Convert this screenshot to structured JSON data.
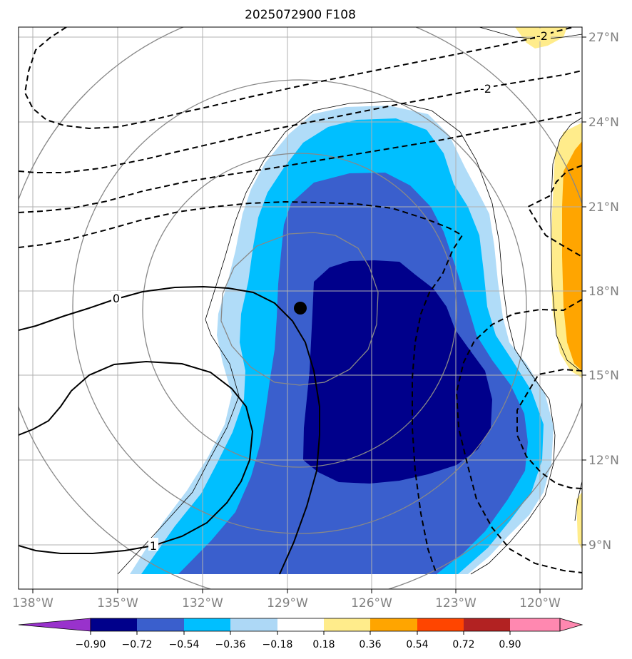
{
  "title": "2025072900 F108",
  "map": {
    "lon_range": [
      -138.8,
      -119.0
    ],
    "lat_range": [
      7.3,
      27.3
    ],
    "lon_ticks": [
      {
        "value": -138,
        "label": "138°W"
      },
      {
        "value": -135,
        "label": "135°W"
      },
      {
        "value": -132,
        "label": "132°W"
      },
      {
        "value": -129,
        "label": "129°W"
      },
      {
        "value": -126,
        "label": "126°W"
      },
      {
        "value": -123,
        "label": "123°W"
      },
      {
        "value": -120,
        "label": "120°W"
      }
    ],
    "lat_ticks": [
      {
        "value": 9,
        "label": "9°N"
      },
      {
        "value": 12,
        "label": "12°N"
      },
      {
        "value": 15,
        "label": "15°N"
      },
      {
        "value": 18,
        "label": "18°N"
      },
      {
        "value": 21,
        "label": "21°N"
      },
      {
        "value": 24,
        "label": "24°N"
      },
      {
        "value": 27,
        "label": "27°N"
      }
    ],
    "grid": true,
    "center_marker": {
      "lon": -128.6,
      "lat": 17.4
    },
    "contour_labels": [
      {
        "text": "0",
        "lon": -134.9,
        "lat": 17.8
      },
      {
        "text": "1",
        "lon": -134.5,
        "lat": 8.9
      },
      {
        "text": "-2",
        "lon": -120.0,
        "lat": 26.9
      },
      {
        "text": "-2",
        "lon": -122.1,
        "lat": 24.1
      }
    ]
  },
  "colorbar": {
    "labels": [
      "−0.90",
      "−0.72",
      "−0.54",
      "−0.36",
      "−0.18",
      "0.18",
      "0.36",
      "0.54",
      "0.72",
      "0.90"
    ],
    "colors": [
      "#9932cc",
      "#00008b",
      "#3a5fcd",
      "#00bfff",
      "#add8f6",
      "#ffffff",
      "#ffec8b",
      "#ffa500",
      "#ff4500",
      "#b22222",
      "#ff88b0"
    ]
  },
  "colors": {
    "grid": "#b0b0b0",
    "range_rings": "#888888",
    "coast": "#000000"
  }
}
